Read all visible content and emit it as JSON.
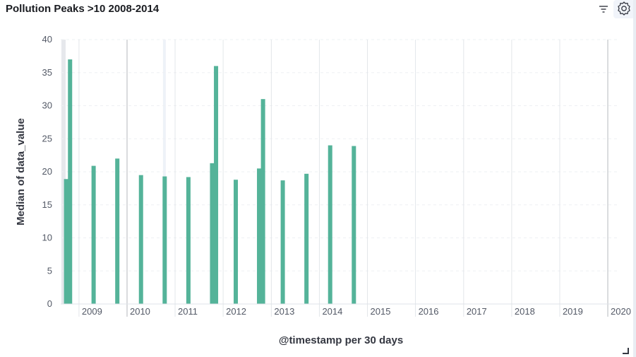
{
  "panel": {
    "title": "Pollution Peaks >10 2008-2014"
  },
  "toolbar": {
    "filter_icon": "filter-icon",
    "settings_icon": "gear-icon"
  },
  "colors": {
    "bar": "#54b399",
    "grid_dashed": "#eef0f3",
    "year_line": "#e3e6ea",
    "year_line_dark": "#b5b8bd",
    "shaded_band": "#e6e8ec"
  },
  "chart_data": {
    "type": "bar",
    "title": "Pollution Peaks >10 2008-2014",
    "xlabel": "@timestamp per 30 days",
    "ylabel": "Median of data_value",
    "ylim": [
      0,
      40
    ],
    "yticks": [
      0,
      5,
      10,
      15,
      20,
      25,
      30,
      35,
      40
    ],
    "xlim": [
      "2008-08-15",
      "2020-04-01"
    ],
    "xticks": [
      "2009",
      "2010",
      "2011",
      "2012",
      "2013",
      "2014",
      "2015",
      "2016",
      "2017",
      "2018",
      "2019",
      "2020"
    ],
    "grid": true,
    "series": [
      {
        "x": [
          "2008-09-25",
          "2008-10-25",
          "2009-04-22",
          "2009-10-19",
          "2010-04-17",
          "2010-10-14",
          "2011-04-12",
          "2011-10-09",
          "2011-11-08",
          "2012-04-06",
          "2012-09-30",
          "2012-10-30",
          "2013-03-29",
          "2013-09-25",
          "2014-03-24",
          "2014-09-20"
        ],
        "values": [
          18.9,
          37.0,
          20.9,
          22.0,
          19.5,
          19.3,
          19.2,
          21.3,
          36.0,
          18.8,
          20.5,
          31.0,
          18.7,
          19.7,
          24.0,
          23.9
        ]
      }
    ]
  }
}
